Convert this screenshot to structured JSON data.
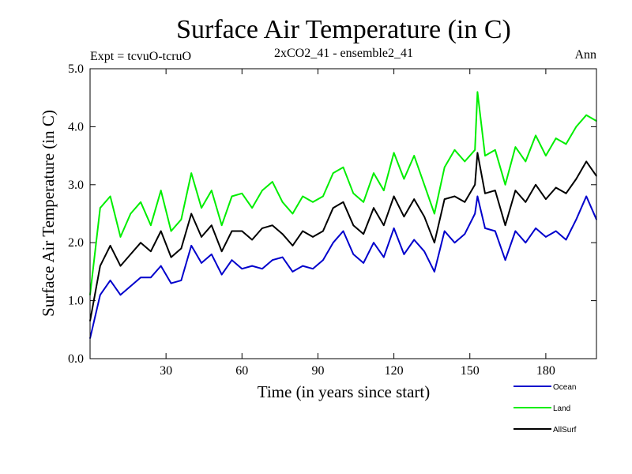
{
  "chart_data": {
    "type": "line",
    "title": "Surface Air Temperature (in C)",
    "subtitle": "2xCO2_41 - ensemble2_41",
    "left_note": "Expt = tcvuO-tcruO",
    "right_note": "Ann",
    "xlabel": "Time (in years since start)",
    "ylabel": "Surface Air Temperature (in C)",
    "xlim": [
      0,
      200
    ],
    "ylim": [
      0,
      5
    ],
    "x_ticks": [
      30,
      60,
      90,
      120,
      150,
      180
    ],
    "x_tick_labels": [
      "30",
      "60",
      "90",
      "120",
      "150",
      "180"
    ],
    "y_ticks": [
      0,
      1,
      2,
      3,
      4,
      5
    ],
    "y_tick_labels": [
      "0.0",
      "1.0",
      "2.0",
      "3.0",
      "4.0",
      "5.0"
    ],
    "grid": false,
    "legend_position": "bottom-right",
    "x": [
      0,
      4,
      8,
      12,
      16,
      20,
      24,
      28,
      32,
      36,
      40,
      44,
      48,
      52,
      56,
      60,
      64,
      68,
      72,
      76,
      80,
      84,
      88,
      92,
      96,
      100,
      104,
      108,
      112,
      116,
      120,
      124,
      128,
      132,
      136,
      140,
      144,
      148,
      152,
      153,
      156,
      160,
      164,
      168,
      172,
      176,
      180,
      184,
      188,
      192,
      196,
      200
    ],
    "series": [
      {
        "name": "Ocean",
        "color": "#0000cc",
        "values": [
          0.35,
          1.1,
          1.35,
          1.1,
          1.25,
          1.4,
          1.4,
          1.6,
          1.3,
          1.35,
          1.95,
          1.65,
          1.8,
          1.45,
          1.7,
          1.55,
          1.6,
          1.55,
          1.7,
          1.75,
          1.5,
          1.6,
          1.55,
          1.7,
          2.0,
          2.2,
          1.8,
          1.65,
          2.0,
          1.75,
          2.25,
          1.8,
          2.05,
          1.85,
          1.5,
          2.2,
          2.0,
          2.15,
          2.5,
          2.8,
          2.25,
          2.2,
          1.7,
          2.2,
          2.0,
          2.25,
          2.1,
          2.2,
          2.05,
          2.4,
          2.8,
          2.4
        ]
      },
      {
        "name": "Land",
        "color": "#00ee00",
        "values": [
          1.1,
          2.6,
          2.8,
          2.1,
          2.5,
          2.7,
          2.3,
          2.9,
          2.2,
          2.4,
          3.2,
          2.6,
          2.9,
          2.3,
          2.8,
          2.85,
          2.6,
          2.9,
          3.05,
          2.7,
          2.5,
          2.8,
          2.7,
          2.8,
          3.2,
          3.3,
          2.85,
          2.7,
          3.2,
          2.9,
          3.55,
          3.1,
          3.5,
          3.0,
          2.5,
          3.3,
          3.6,
          3.4,
          3.6,
          4.6,
          3.5,
          3.6,
          3.0,
          3.65,
          3.4,
          3.85,
          3.5,
          3.8,
          3.7,
          4.0,
          4.2,
          4.1
        ]
      },
      {
        "name": "AllSurf",
        "color": "#000000",
        "values": [
          0.65,
          1.6,
          1.95,
          1.6,
          1.8,
          2.0,
          1.85,
          2.2,
          1.75,
          1.9,
          2.5,
          2.1,
          2.3,
          1.85,
          2.2,
          2.2,
          2.05,
          2.25,
          2.3,
          2.15,
          1.95,
          2.2,
          2.1,
          2.2,
          2.6,
          2.7,
          2.3,
          2.15,
          2.6,
          2.3,
          2.8,
          2.45,
          2.75,
          2.45,
          2.0,
          2.75,
          2.8,
          2.7,
          3.0,
          3.55,
          2.85,
          2.9,
          2.3,
          2.9,
          2.7,
          3.0,
          2.75,
          2.95,
          2.85,
          3.1,
          3.4,
          3.15
        ]
      }
    ]
  }
}
